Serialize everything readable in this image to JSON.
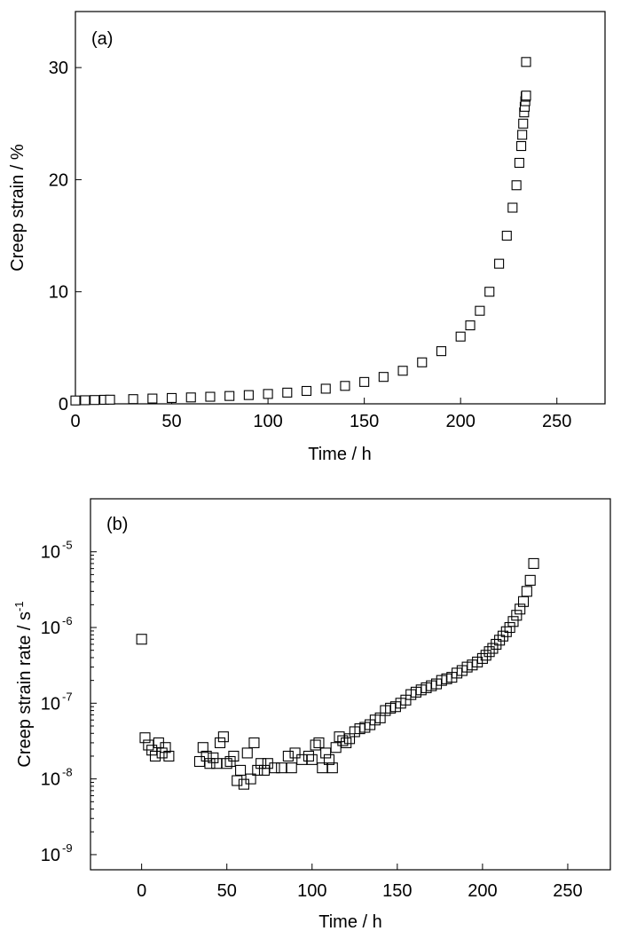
{
  "chart_data": [
    {
      "type": "scatter",
      "panel_label": "(a)",
      "xlabel": "Time / h",
      "ylabel": "Creep strain / %",
      "xlim": [
        0,
        275
      ],
      "ylim": [
        0,
        35
      ],
      "x_ticks": [
        0,
        50,
        100,
        150,
        200,
        250
      ],
      "y_ticks": [
        0,
        10,
        20,
        30
      ],
      "x_tick_labels": [
        "0",
        "50",
        "100",
        "150",
        "200",
        "250"
      ],
      "y_tick_labels": [
        "0",
        "10",
        "20",
        "30"
      ],
      "marker": "open-square",
      "series": [
        {
          "x": [
            0,
            5,
            10,
            15,
            18,
            30,
            40,
            50,
            60,
            70,
            80,
            90,
            100,
            110,
            120,
            130,
            140,
            150,
            160,
            170,
            180,
            190,
            200,
            205,
            210,
            215,
            220,
            224,
            227,
            229,
            230.5,
            231.5,
            232,
            232.5,
            233,
            233.3,
            233.6,
            233.8,
            234,
            234
          ],
          "y": [
            0.3,
            0.32,
            0.34,
            0.36,
            0.37,
            0.42,
            0.47,
            0.52,
            0.57,
            0.63,
            0.7,
            0.78,
            0.88,
            1.0,
            1.15,
            1.35,
            1.6,
            1.95,
            2.4,
            2.95,
            3.7,
            4.7,
            6.0,
            7.0,
            8.3,
            10.0,
            12.5,
            15.0,
            17.5,
            19.5,
            21.5,
            23.0,
            24.0,
            25.0,
            26.0,
            26.5,
            27.0,
            27.4,
            27.5,
            30.5
          ]
        }
      ]
    },
    {
      "type": "scatter",
      "panel_label": "(b)",
      "xlabel": "Time / h",
      "ylabel": "Creep strain rate / s",
      "ylabel_superscript": "-1",
      "xlim": [
        -30,
        275
      ],
      "ylim_exp": [
        -9.2,
        -4.3
      ],
      "yscale": "log",
      "x_ticks": [
        0,
        50,
        100,
        150,
        200,
        250
      ],
      "x_tick_labels": [
        "0",
        "50",
        "100",
        "150",
        "200",
        "250"
      ],
      "y_tick_exponents": [
        -9,
        -8,
        -7,
        -6,
        -5
      ],
      "y_tick_base": "10",
      "y_tick_sups": [
        "-9",
        "-8",
        "-7",
        "-6",
        "-5"
      ],
      "marker": "open-square",
      "series": [
        {
          "x": [
            0,
            2,
            4,
            6,
            8,
            10,
            12,
            14,
            16,
            34,
            36,
            38,
            40,
            42,
            44,
            46,
            48,
            50,
            52,
            54,
            56,
            58,
            60,
            62,
            64,
            66,
            68,
            70,
            72,
            74,
            78,
            82,
            86,
            88,
            90,
            94,
            98,
            100,
            102,
            104,
            106,
            108,
            110,
            112,
            114,
            116,
            118,
            120,
            122,
            125,
            128,
            131,
            134,
            137,
            140,
            143,
            146,
            149,
            152,
            155,
            158,
            161,
            164,
            167,
            170,
            173,
            176,
            179,
            182,
            185,
            188,
            191,
            194,
            197,
            200,
            202,
            204,
            206,
            208,
            210,
            212,
            214,
            216,
            218,
            220,
            222,
            224,
            226,
            228,
            230
          ],
          "y": [
            7e-07,
            3.5e-08,
            2.8e-08,
            2.4e-08,
            2e-08,
            3e-08,
            2.2e-08,
            2.6e-08,
            2e-08,
            1.7e-08,
            2.6e-08,
            2e-08,
            1.6e-08,
            1.9e-08,
            1.6e-08,
            3e-08,
            3.6e-08,
            1.6e-08,
            1.7e-08,
            2e-08,
            9.5e-09,
            1.3e-08,
            8.5e-09,
            2.2e-08,
            1e-08,
            3e-08,
            1.3e-08,
            1.6e-08,
            1.3e-08,
            1.6e-08,
            1.4e-08,
            1.4e-08,
            2e-08,
            1.4e-08,
            2.2e-08,
            1.8e-08,
            2e-08,
            1.8e-08,
            2.8e-08,
            3e-08,
            1.4e-08,
            2.2e-08,
            1.8e-08,
            1.4e-08,
            2.6e-08,
            3.6e-08,
            3.2e-08,
            3e-08,
            3.4e-08,
            4.2e-08,
            4.6e-08,
            4.8e-08,
            5.2e-08,
            6e-08,
            6.4e-08,
            8e-08,
            8.6e-08,
            9e-08,
            1e-07,
            1.1e-07,
            1.3e-07,
            1.4e-07,
            1.5e-07,
            1.6e-07,
            1.7e-07,
            1.8e-07,
            2e-07,
            2.1e-07,
            2.2e-07,
            2.5e-07,
            2.7e-07,
            3e-07,
            3.2e-07,
            3.5e-07,
            3.9e-07,
            4.3e-07,
            4.8e-07,
            5.3e-07,
            6e-07,
            6.8e-07,
            7.7e-07,
            8.8e-07,
            1e-06,
            1.2e-06,
            1.45e-06,
            1.75e-06,
            2.2e-06,
            3e-06,
            4.2e-06,
            7e-06
          ]
        }
      ]
    }
  ]
}
